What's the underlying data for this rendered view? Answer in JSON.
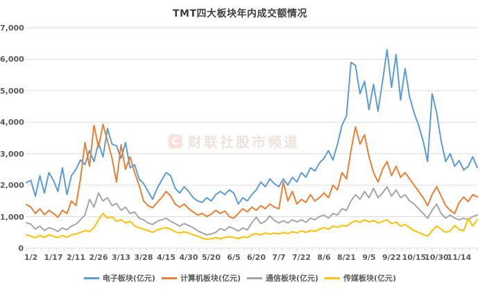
{
  "title": "TMT四大板块年内成交额情况",
  "watermark": {
    "logo": "C",
    "text": "财联社股市频道"
  },
  "colors": {
    "grid": "#d9d9d9",
    "axis_text": "#595959",
    "title_text": "#3f3f3f",
    "background": "#ffffff"
  },
  "chart_data": {
    "type": "line",
    "title": "TMT四大板块年内成交额情况",
    "xlabel": "",
    "ylabel": "",
    "ylim": [
      0,
      7000
    ],
    "y_tick_labels": [
      "0",
      "1,000",
      "2,000",
      "3,000",
      "4,000",
      "5,000",
      "6,000",
      "7,000"
    ],
    "grid": true,
    "legend_position": "bottom",
    "x_tick_labels": [
      "1/2",
      "1/17",
      "2/11",
      "2/26",
      "3/13",
      "3/28",
      "4/15",
      "4/30",
      "5/20",
      "6/5",
      "6/20",
      "7/7",
      "7/22",
      "8/6",
      "8/21",
      "9/5",
      "9/22",
      "10/15",
      "10/30",
      "11/14"
    ],
    "x_tick_indices": [
      1,
      6,
      11,
      16,
      21,
      26,
      31,
      36,
      41,
      46,
      51,
      56,
      61,
      66,
      71,
      76,
      81,
      86,
      91,
      96
    ],
    "n_points": 101,
    "minor_tick_count": 60,
    "series": [
      {
        "name": "电子板块(亿元)",
        "color": "#5B9BD5",
        "values": [
          2080,
          2150,
          1650,
          2300,
          1750,
          2400,
          2150,
          1800,
          2550,
          1700,
          2300,
          2500,
          2800,
          2650,
          3100,
          2750,
          3350,
          2900,
          3800,
          3300,
          3250,
          2850,
          3350,
          2550,
          2650,
          2200,
          2050,
          1800,
          1550,
          1900,
          2150,
          2400,
          2300,
          1900,
          1750,
          1950,
          1800,
          1600,
          1500,
          1450,
          1600,
          1500,
          1700,
          1800,
          1700,
          1850,
          1750,
          1400,
          1600,
          1500,
          1700,
          1850,
          2100,
          1950,
          2200,
          2050,
          1950,
          2200,
          2000,
          2250,
          2100,
          2400,
          2250,
          2550,
          2450,
          2700,
          2850,
          3100,
          2800,
          3300,
          3900,
          4200,
          5900,
          5800,
          4900,
          5300,
          4400,
          5200,
          4350,
          5300,
          6300,
          5100,
          6150,
          4700,
          5700,
          4800,
          4300,
          3900,
          3400,
          2750,
          4900,
          4300,
          3400,
          2750,
          3000,
          2600,
          2780,
          2480,
          2600,
          2900,
          2560
        ]
      },
      {
        "name": "计算机板块(亿元)",
        "color": "#ED7D31",
        "values": [
          1380,
          1300,
          1100,
          1250,
          1060,
          1200,
          1100,
          980,
          1200,
          1100,
          1500,
          1350,
          2200,
          3350,
          2600,
          3900,
          3200,
          3930,
          3400,
          2850,
          2100,
          3280,
          2500,
          2900,
          2400,
          2000,
          1500,
          1350,
          1280,
          1450,
          1600,
          1800,
          1650,
          1400,
          1300,
          1400,
          1250,
          1150,
          1050,
          1100,
          1000,
          1080,
          1200,
          1100,
          1180,
          1000,
          950,
          1100,
          1250,
          1150,
          1300,
          1200,
          1350,
          1250,
          1400,
          1300,
          1250,
          2100,
          1500,
          1800,
          1400,
          1550,
          1450,
          1700,
          1500,
          1600,
          1750,
          1600,
          2000,
          1850,
          2400,
          2200,
          3100,
          3850,
          3300,
          3600,
          2900,
          2400,
          2100,
          2500,
          2750,
          2300,
          2600,
          2250,
          2400,
          2200,
          2000,
          1800,
          1600,
          1350,
          1700,
          1950,
          1650,
          1350,
          1200,
          1100,
          1450,
          1620,
          1480,
          1700,
          1620
        ]
      },
      {
        "name": "通信板块(亿元)",
        "color": "#A5A5A5",
        "values": [
          810,
          760,
          600,
          700,
          560,
          650,
          600,
          530,
          640,
          580,
          700,
          760,
          900,
          1050,
          1550,
          1300,
          1750,
          1500,
          1600,
          1350,
          1420,
          1200,
          1300,
          1100,
          1150,
          950,
          900,
          800,
          750,
          850,
          900,
          950,
          850,
          780,
          700,
          780,
          720,
          650,
          550,
          480,
          420,
          450,
          500,
          620,
          560,
          680,
          620,
          540,
          640,
          580,
          800,
          985,
          780,
          850,
          1020,
          880,
          800,
          870,
          800,
          900,
          830,
          900,
          820,
          950,
          900,
          1000,
          1050,
          950,
          1100,
          1050,
          1250,
          1200,
          1500,
          1700,
          1550,
          1800,
          1600,
          1900,
          1600,
          1750,
          1950,
          1650,
          1850,
          1600,
          1700,
          1500,
          1400,
          1250,
          1100,
          950,
          1200,
          1400,
          1100,
          950,
          1050,
          950,
          900,
          950,
          900,
          1000,
          1050
        ]
      },
      {
        "name": "传媒板块(亿元)",
        "color": "#FFC000",
        "values": [
          420,
          380,
          330,
          400,
          340,
          420,
          380,
          330,
          400,
          350,
          420,
          450,
          500,
          560,
          520,
          650,
          900,
          1100,
          950,
          1000,
          850,
          900,
          800,
          850,
          700,
          650,
          600,
          550,
          500,
          580,
          620,
          650,
          600,
          520,
          480,
          520,
          480,
          420,
          380,
          320,
          280,
          300,
          330,
          300,
          340,
          360,
          340,
          300,
          360,
          330,
          420,
          460,
          420,
          480,
          440,
          480,
          450,
          500,
          460,
          520,
          480,
          550,
          500,
          560,
          530,
          600,
          650,
          600,
          700,
          660,
          720,
          700,
          800,
          870,
          820,
          900,
          830,
          880,
          800,
          850,
          900,
          780,
          820,
          700,
          750,
          650,
          550,
          500,
          430,
          380,
          550,
          700,
          600,
          500,
          550,
          720,
          590,
          550,
          940,
          700,
          900
        ]
      }
    ]
  }
}
